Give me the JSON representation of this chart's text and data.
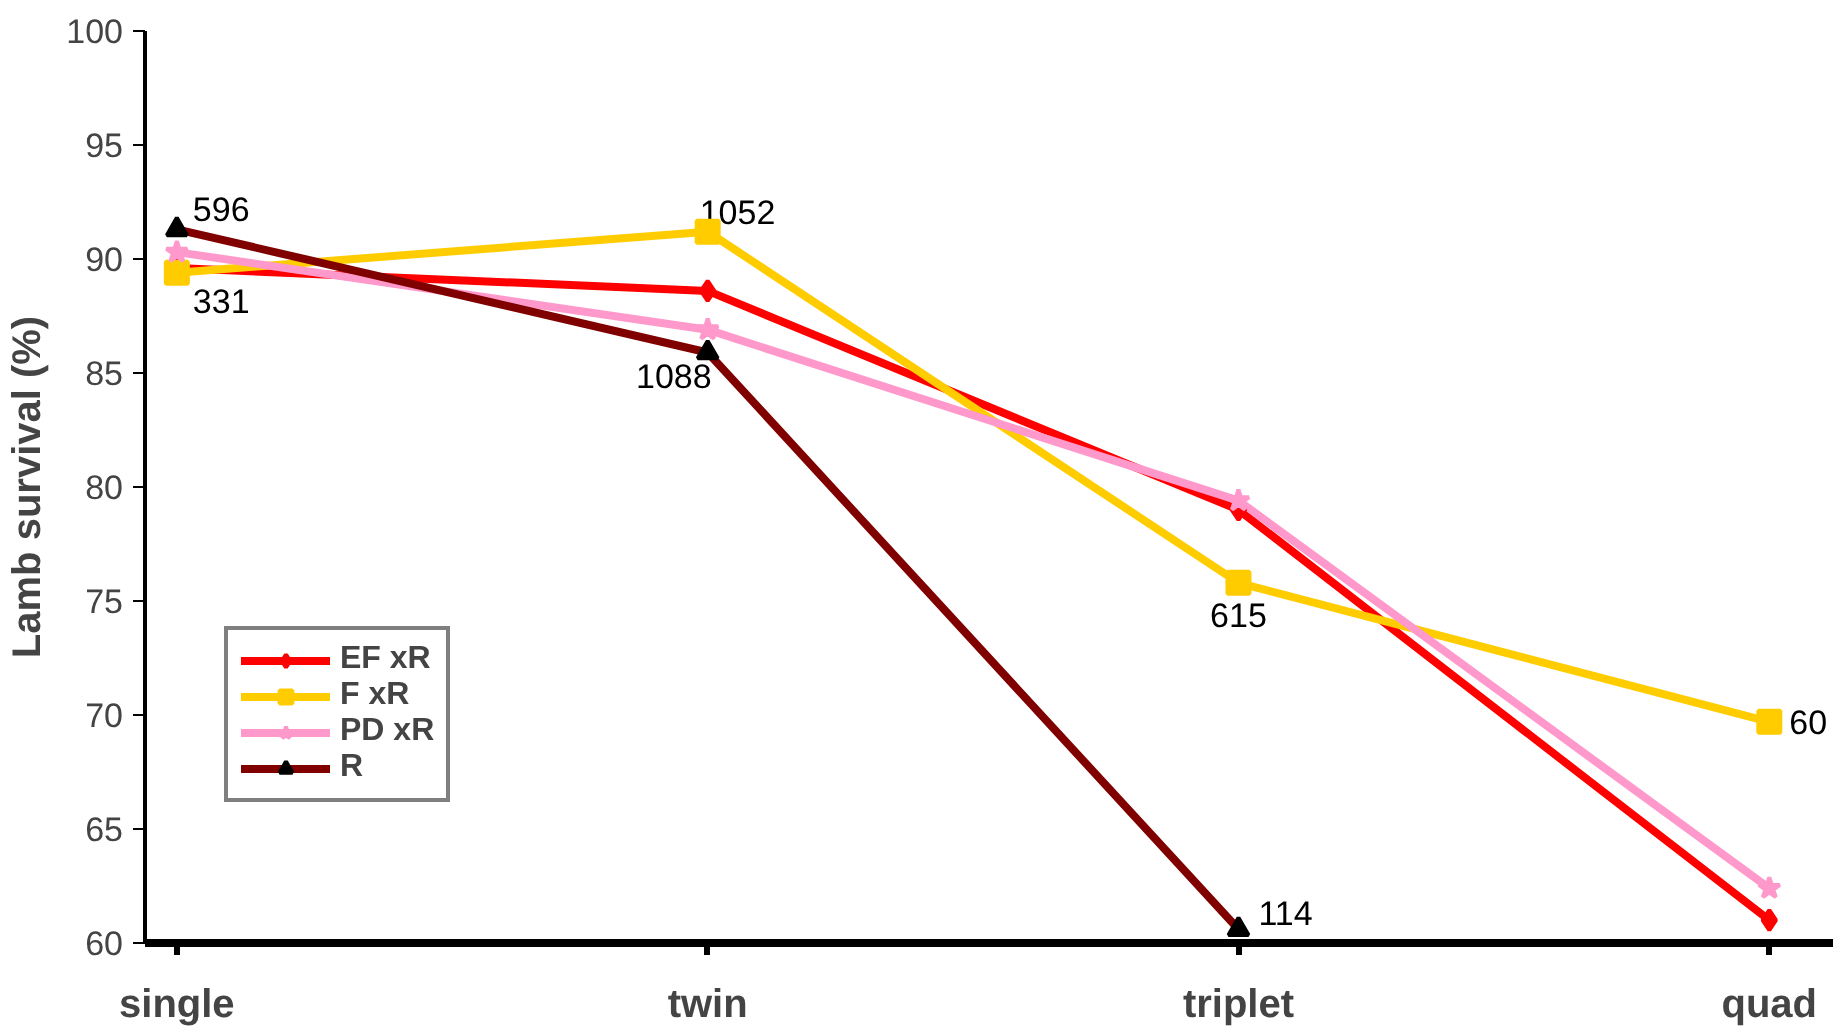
{
  "chart_data": {
    "type": "line",
    "ylabel": "Lamb survival (%)",
    "categories": [
      "single",
      "twin",
      "triplet",
      "quad"
    ],
    "series": [
      {
        "name": "EF xR",
        "color": "#ff0000",
        "marker": "diamond",
        "values": [
          89.6,
          88.6,
          79.0,
          61.0
        ]
      },
      {
        "name": "F xR",
        "color": "#ffcc00",
        "marker": "square",
        "values": [
          89.4,
          91.2,
          75.8,
          69.7
        ]
      },
      {
        "name": "PD xR",
        "color": "#ff99cc",
        "marker": "star",
        "values": [
          90.3,
          86.9,
          79.4,
          62.4
        ]
      },
      {
        "name": "R",
        "color": "#800000",
        "marker": "triangle",
        "values": [
          91.3,
          85.9,
          60.6,
          null
        ]
      }
    ],
    "annotations": [
      {
        "text": "596",
        "x": "single",
        "y": 91.3
      },
      {
        "text": "331",
        "x": "single",
        "y": 89.4
      },
      {
        "text": "1052",
        "x": "twin",
        "y": 91.2
      },
      {
        "text": "1088",
        "x": "twin",
        "y": 85.9
      },
      {
        "text": "615",
        "x": "triplet",
        "y": 75.8
      },
      {
        "text": "114",
        "x": "triplet",
        "y": 60.6
      },
      {
        "text": "60",
        "x": "quad",
        "y": 69.7
      }
    ],
    "ylim": [
      60,
      100
    ],
    "yticks": [
      60,
      65,
      70,
      75,
      80,
      85,
      90,
      95,
      100
    ],
    "grid": false,
    "legend": "left",
    "line_style": "solid"
  }
}
